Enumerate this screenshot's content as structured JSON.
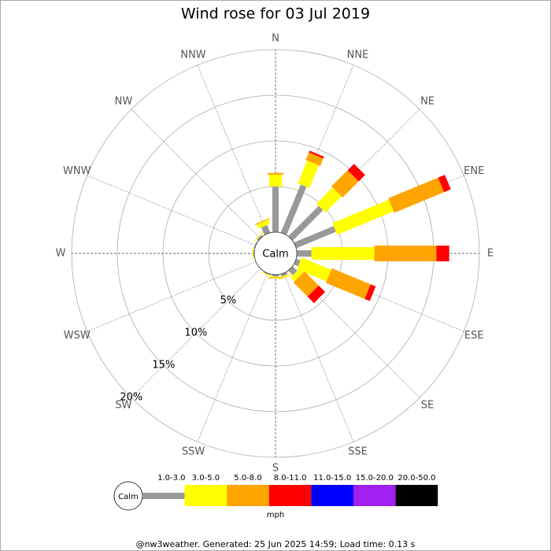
{
  "chart_data": {
    "type": "windrose",
    "title": "Wind rose for 03 Jul 2019",
    "categories": [
      "N",
      "NNE",
      "NE",
      "ENE",
      "E",
      "ESE",
      "SE",
      "SSE",
      "S",
      "SSW",
      "SW",
      "WSW",
      "W",
      "WNW",
      "NW",
      "NNW"
    ],
    "series": [
      {
        "name": "1.0-3.0",
        "color": "#999999",
        "values": [
          5.0,
          5.7,
          4.7,
          4.7,
          1.6,
          0.5,
          0.7,
          0.3,
          0.2,
          0.1,
          0,
          0,
          0.1,
          0.1,
          0.2,
          0.9
        ]
      },
      {
        "name": "3.0-5.0",
        "color": "#ffff00",
        "values": [
          1.3,
          2.7,
          2.5,
          6.7,
          6.9,
          3.5,
          0.6,
          0.2,
          0.1,
          0.1,
          0,
          0,
          0.1,
          0,
          0.1,
          0.5
        ]
      },
      {
        "name": "5.0-8.0",
        "color": "#ffa500",
        "values": [
          0.2,
          0.9,
          2.5,
          5.9,
          6.8,
          4.6,
          2.2,
          0,
          0.1,
          0,
          0,
          0,
          0,
          0,
          0,
          0.1
        ]
      },
      {
        "name": "8.0-11.0",
        "color": "#ff0000",
        "values": [
          0,
          0.2,
          1.0,
          0.8,
          1.4,
          0.6,
          1.0,
          0,
          0,
          0,
          0,
          0,
          0,
          0,
          0,
          0
        ]
      },
      {
        "name": "11.0-15.0",
        "color": "#0000ff",
        "values": [
          0,
          0,
          0,
          0,
          0,
          0,
          0,
          0,
          0,
          0,
          0,
          0,
          0,
          0,
          0,
          0
        ]
      },
      {
        "name": "15.0-20.0",
        "color": "#a020f0",
        "values": [
          0,
          0,
          0,
          0,
          0,
          0,
          0,
          0,
          0,
          0,
          0,
          0,
          0,
          0,
          0,
          0
        ]
      },
      {
        "name": "20.0-50.0",
        "color": "#000000",
        "values": [
          0,
          0,
          0,
          0,
          0,
          0,
          0,
          0,
          0,
          0,
          0,
          0,
          0,
          0,
          0,
          0
        ]
      }
    ],
    "rlim": [
      0,
      20
    ],
    "rticks": [
      {
        "value": 5,
        "label": "5%"
      },
      {
        "value": 10,
        "label": "10%"
      },
      {
        "value": 15,
        "label": "15%"
      },
      {
        "value": 20,
        "label": "20%"
      }
    ],
    "calm_label": "Calm",
    "unit": "mph",
    "footer": "@nw3weather. Generated: 25 Jun 2025 14:59; Load time: 0.13 s"
  }
}
